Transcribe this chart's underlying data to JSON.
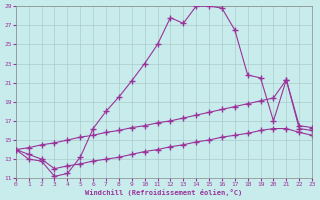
{
  "xlabel": "Windchill (Refroidissement éolien,°C)",
  "xlim": [
    0,
    23
  ],
  "ylim": [
    11,
    29
  ],
  "xticks": [
    0,
    1,
    2,
    3,
    4,
    5,
    6,
    7,
    8,
    9,
    10,
    11,
    12,
    13,
    14,
    15,
    16,
    17,
    18,
    19,
    20,
    21,
    22,
    23
  ],
  "yticks": [
    11,
    13,
    15,
    17,
    19,
    21,
    23,
    25,
    27,
    29
  ],
  "background_color": "#c8ecec",
  "grid_color": "#aacccc",
  "line_color": "#993399",
  "marker": "+",
  "line1_x": [
    0,
    1,
    2,
    3,
    4,
    5,
    6,
    7,
    8,
    9,
    10,
    11,
    12,
    13,
    14,
    15,
    16,
    17,
    18,
    19,
    20,
    21,
    22,
    23
  ],
  "line1_y": [
    14.0,
    13.0,
    12.8,
    11.2,
    11.5,
    13.2,
    16.2,
    18.0,
    19.5,
    21.2,
    23.0,
    25.0,
    27.8,
    27.2,
    29.0,
    29.0,
    28.8,
    26.5,
    21.8,
    21.5,
    17.0,
    21.3,
    16.5,
    16.3
  ],
  "line2_x": [
    0,
    1,
    2,
    3,
    4,
    5,
    6,
    7,
    8,
    9,
    10,
    11,
    12,
    13,
    14,
    15,
    16,
    17,
    18,
    19,
    20,
    21,
    22,
    23
  ],
  "line2_y": [
    14.0,
    14.2,
    14.5,
    14.7,
    15.0,
    15.3,
    15.5,
    15.8,
    16.0,
    16.3,
    16.5,
    16.8,
    17.0,
    17.3,
    17.6,
    17.9,
    18.2,
    18.5,
    18.8,
    19.1,
    19.4,
    21.3,
    16.2,
    16.0
  ],
  "line3_x": [
    0,
    1,
    2,
    3,
    4,
    5,
    6,
    7,
    8,
    9,
    10,
    11,
    12,
    13,
    14,
    15,
    16,
    17,
    18,
    19,
    20,
    21,
    22,
    23
  ],
  "line3_y": [
    14.0,
    13.5,
    13.0,
    12.0,
    12.3,
    12.5,
    12.8,
    13.0,
    13.2,
    13.5,
    13.8,
    14.0,
    14.3,
    14.5,
    14.8,
    15.0,
    15.3,
    15.5,
    15.7,
    16.0,
    16.2,
    16.2,
    15.8,
    15.5
  ]
}
